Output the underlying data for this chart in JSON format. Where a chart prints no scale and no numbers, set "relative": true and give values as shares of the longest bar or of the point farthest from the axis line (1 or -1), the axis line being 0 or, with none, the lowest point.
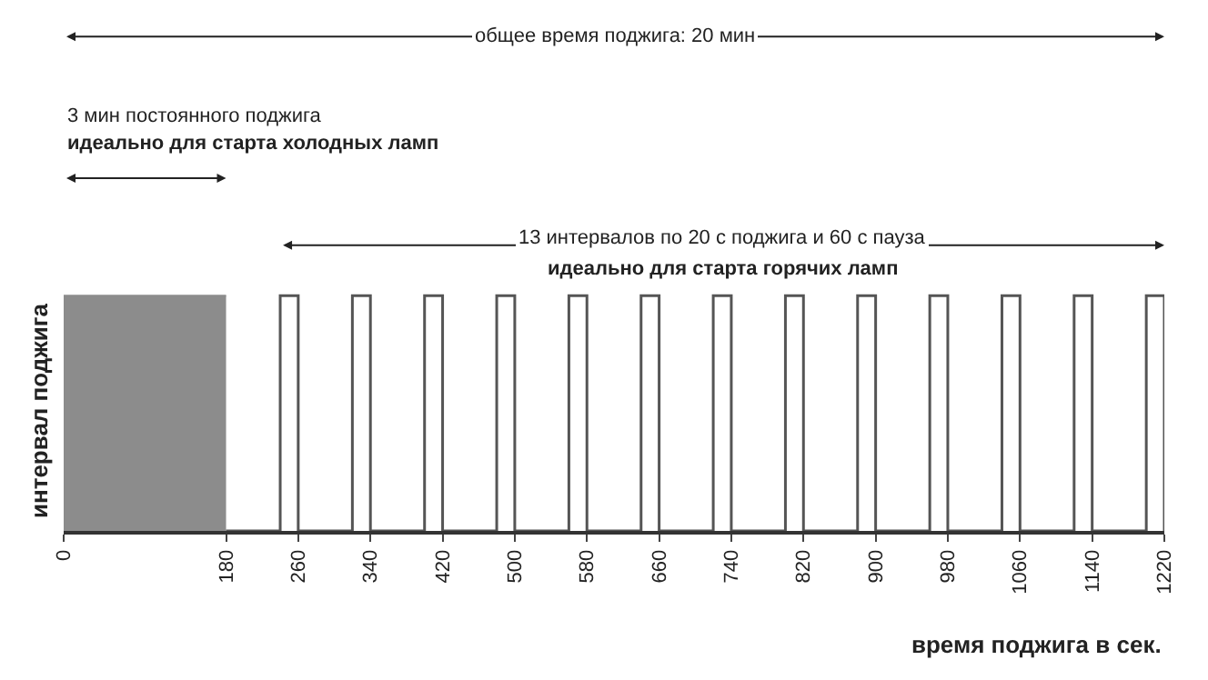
{
  "chart_data": {
    "type": "step",
    "relative": true,
    "xlabel": "время поджига в сек.",
    "ylabel": "интервал поджига",
    "xlim": [
      0,
      1220
    ],
    "xticks": [
      0,
      180,
      260,
      340,
      420,
      500,
      580,
      660,
      740,
      820,
      900,
      980,
      1060,
      1140,
      1220
    ],
    "series": [
      {
        "type": "area",
        "color": "#8c8c8c",
        "x": [
          0,
          180
        ],
        "values": [
          1,
          1
        ]
      },
      {
        "color": "#555555",
        "x": [
          180,
          240,
          260,
          320,
          340,
          400,
          420,
          480,
          500,
          560,
          580,
          640,
          660,
          720,
          740,
          800,
          820,
          880,
          900,
          960,
          980,
          1040,
          1060,
          1120,
          1140,
          1200,
          1220
        ],
        "values": [
          0,
          1,
          0,
          1,
          0,
          1,
          0,
          1,
          0,
          1,
          0,
          1,
          0,
          1,
          0,
          1,
          0,
          1,
          0,
          1,
          0,
          1,
          0,
          1,
          0,
          1,
          0
        ]
      }
    ],
    "annotations": [
      "общее время поджига: 20 мин",
      "3 мин постоянного поджига",
      "идеально для старта холодных ламп",
      "13 интервалов по 20 с поджига и 60 с пауза",
      "идеально для старта горячих ламп"
    ],
    "tick_labels": "x"
  }
}
